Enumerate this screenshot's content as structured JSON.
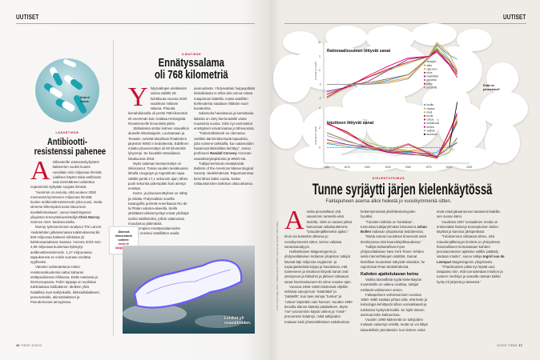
{
  "left_page": {
    "section": "UUTISET",
    "footer": {
      "page_number": "16",
      "magazine": "TIEDE",
      "issue": "3/2022"
    },
    "article_antibiotics": {
      "image_caption": "Aina ei tehoa.",
      "kicker": "LÄÄKETIEDE",
      "title_lines": [
        "Antibiootti-",
        "resistenssi pahenee"
      ],
      "drop_cap": "A",
      "paragraphs": [
        [
          {
            "t": "ntibiooteille vastustuskykyisten bakteerien vuoksi kuolee vuosittain viisi miljoonaa ihmistä. Liiallisen käytön takia antibiootit ovat menettäneet odotettua nopeammin kykyään suojata ihmisiä."
          }
        ],
        [
          {
            "t": "”Aiemmin on arvioitu, että vuoteen 2050 mennessä kymmenen miljoonaa ihmistä kuolee antibioottiresistenssiin joka vuosi, mutta olemme lähempänä tuota lukua kuin kuvittelimmekaan”, sanoo Washingtonin yliopiston terveystaloustieteilijä "
          },
          {
            "t": "Chris Murray",
            "b": true
          },
          {
            "t": " Science Alert -tiedesivustolla."
          }
        ],
        [
          {
            "t": "Murray työtovereineen analysoi The Lancet -tiedelehden julkaisemassa tutkimuksessa liki 500 miljoonaa bakteeri-infektiota yli kahdessasadassa maassa. Vuonna 2019 noin 4,95 miljoonaa kuolemaa kytkeytyi antibioottiresistenssiin. 1,27 miljoonassa tapauksessa se voitiin suoraan osoittaa syylliseksi."
          }
        ],
        [
          {
            "t": "Väestön suhteutettuna eniten resistenssikuolemia sattui Saharan eteläpuolisessa Afrikassa, Etelä-Aasiassa ja Itä-Euroopassa. Pahin tappaja on suolistoa tulehduttava kolibakteeri. Melkein yhtä haitallisia ovat stafylokokki, klebsiellabakteeri, pneumokokki, akinetobakteeri ja Pseudomonas aeruginosa."
          }
        ]
      ]
    },
    "article_lightning": {
      "kicker": "ILMATIEDE",
      "title_lines": [
        "Ennätyssalama",
        "oli 768 kilometriä"
      ],
      "drop_cap": "Y",
      "paragraphs": [
        [
          {
            "t": "hdysvaltojen eteläisissä osissa välähti 29. huhtikuuta vuonna 2020 maailman mittavin salama. Pituutta leimahduksella oli peräti 768 kilometriä eli enemmän kuin matkaa Helsingistä Rovaniemelle linnuntietä pitkin."
          }
        ],
        [
          {
            "t": "Jättisalama ulottui kolmen osavaltion alueelle Mississippiin, Louisianaan ja Texasiin, selviää Maailman ilmatieteen järjestön WMO:n tiedotteesta. Edellinen mitattu pituusennätys oli 60 kilometriä lyhyempi. Se havaittiin Brasiliassa lokakuussa 2018."
          }
        ],
        [
          {
            "t": "Myös salaman kestoennätys on rikkoutunut. Toissa vuoden kesäkuussa lähellä Uruguayn ja Argentiinan rajaa välähti peräti 17,1 sekunnin ajan, lähes puoli sekuntia pidempään kuin aiempi ennätys."
          }
        ],
        [
          {
            "t": "Kesto- ja pituusennätykset on nähty ja mitattu Yhdysvaltain suurilla tasangoilla ja Etelä-Amerikassa Rio de la Platan valuma-alueella. Siellä yksittäiset ukkosmyrskyt voivat yhdistyä isoiksi säällmiöiksi, jolloin salamoista muodostuu jättimäisiä."
          }
        ],
        [
          {
            "t": "Molempien ennätyssalamoiden mittaus onnistui satelliittien avulla avaruudesta. Yhdysvaltain huippupitkää leiskahdusta ei ehkä olisi voinut mitata maapinnan laitteilla, mutta satelliitin korkeudesta saadaan riittävän suuri kuvakulma."
          }
        ],
        [
          {
            "t": "Salamoita havaitsevia ja kartoittavia laitteita on viety kiertoradalle vasta muutamia vuosia. Siksi nyt varmistetut ennätykset voivat kaatua jo lähivuosina."
          }
        ],
        [
          {
            "t": "”Todennäköisesti on olemassa vieläkin äärimmäisempiä tapauksia, joita voimme tarkkailla, kun salamoiden havainnointitekniikka kehittyy”, sanoo professori "
          },
          {
            "t": "Randall Cerveny",
            "b": true
          },
          {
            "t": " Arizonan osavaltionyliopistosta ja WMO:sta."
          }
        ],
        [
          {
            "t": "Tutkijat kertoivat ennätyksistä Bulletin of the American Meteorological Society -tiedelehdessä. Raportoinnissa kesti lähes kaksi vuotta, koska mittaustulosten tarkistus ottaa aikansa."
          }
        ]
      ],
      "vote_box": {
        "line1": "Äänestä kiinnostavin uutinen:",
        "link": "tiede.fi/ lukijakilpailu"
      },
      "image_caption": "Leiskot yli osavaltioiden."
    }
  },
  "right_page": {
    "section": "UUTISET",
    "footer": {
      "issue": "3/2022",
      "magazine": "TIEDE",
      "page_number": "17"
    },
    "bubble_question": "Entä ne perustelut?",
    "credit": "Kuvat: Getty Images, NOAA. Grafiikka: Marten Scheffer, Ingrid van de Leemput, Johan Bollen",
    "article_language": {
      "kicker": "KIELENTUTKIMUS",
      "title": "Tunne syrjäytti järjen kielenkäytössä",
      "subtitle": "Faktapuheen asema alkoi heiketä jo vuosikymmeniä sitten.",
      "drop_cap": "A",
      "paragraphs": [
        [
          {
            "t": "sioita perustellaan yhä useammin tunteella eikä tiedolla, mikä on saanut jotkut kutsumaan aikakauttamme ”totuudenjälkeiseksi ajaksi.” Ilmiö sai kuitenkin alkunsa jo vuosikymmeniä sitten, kertoo valtaisa sanastoanalyysi."
          }
        ],
        [
          {
            "t": "Hollantilaisen Wageningenin ja yhdysvaltalaisen Indianan yliopiston tutkijat kävivät läpi miljoonia englannin- ja espanjankielisiä kirjoja ja havaitsivat, että tunteeseen ja intuitioon liittyvät sanat ovat yleistyneet ja faktoihin ja järkeen viittaavat sanat harvinaistuneet 40 viime vuoden ajan."
          }
        ],
        [
          {
            "t": "Vuosina 1850–1980 teksteissä viljeltiin sellaisia sanoja kuin ”määrittää” ja ”päätellä”, kun taas sanoja ”tuntea” ja ”uskoa” käytettiin vain harvoin. Vuoden 1980 tienoilla tilanne kääntyi päälaelleen. Myös ”me”-pronominin käyttö väheni ja ”minä”-pronominin lisääntyi, mikä tutkijoiden mukaan kielii yhteisölähtöisen näkökulman heikentymisestä yksilökeskeisyyden hyväksi."
          }
        ],
        [
          {
            "t": "”Tulosten tulkinta on hankalaa”, tunnustaa tutkijaryhmään lukeutunut "
          },
          {
            "t": "Johan Bollen",
            "b": true
          },
          {
            "t": " Indianan yliopistosta tiedotteessa."
          }
        ],
        [
          {
            "t": "”Mutta samat muutokset ilmenevät sekä tietokirjoissa että kaunokirjallisuudessa.”"
          }
        ],
        [
          {
            "t": "Tutkijat tarkastelivat myös yhdysvaltalaisen New York Times -lehden sekä internethakujen sisältöä. Samat kielelliset muutokset näkyivät niissäkin, he raportoivat Pnas-tiedelehdessä."
          }
        ],
        {
          "subhead": "Kahden ajattelutavan keinu"
        },
        [
          {
            "t": "Vaikka täsmällistä syytä kielenkäytön muutoksille on vaikea osoittaa, tutkijat esittävät valistuneen arvion."
          }
        ],
        [
          {
            "t": "Faktapuheen vahvistuminen vuosina 1850–1980 saattaa johtua siitä, että tiede ja teknologia kehittyivät silloin voimakkaasti ja tuloksista hyötyivät kaikki. Se lujitti tieteen asemaa koko kulttuurissa."
          }
        ],
        [
          {
            "t": "Vuoden 1980 käännettä on tutkijoiden mukaan vaisempi eritellä, mutta se voi liittyä taloudellisiin jännitteisiin: kun tieteen voitot eivät enää jakaantuneet tasaisesti kaikille, sen suosio kärsi."
          }
        ],
        [
          {
            "t": "Vuodesta 2007 sosiaalinen media on entisestään lisännyt tunnepitoisen kielen käyttöä ja karsinut järkiperäistä."
          }
        ],
        [
          {
            "t": "”Tuloksemme viittaavat siihen, että totuudenjälkeisyys ilmiönä on yhteydessä historialliseen keinulautaan kahden perusluonteisen ajattelun välillä: päättely vastaan intuitio”, sanoo tutkija "
          },
          {
            "t": "Ingrid van de Leemput",
            "b": true
          },
          {
            "t": " Wageningenin yliopistosta."
          }
        ],
        [
          {
            "t": "”Yhteiskuntien pitää nyt löytää uusi tasapaino niin, että tunnustetaan intuition ja tunteen merkitys ja samalla otetaan kaikki hyöty irti järjestä ja tieteestä.”"
          }
        ]
      ]
    }
  },
  "chart_data": [
    {
      "type": "line",
      "title": "Rationaalisuuteen liittyvät sanat",
      "ylabel": "suhteellinen käyttö",
      "xlim": [
        1850,
        2025
      ],
      "ylim": [
        -2,
        2
      ],
      "yticks": [
        2,
        1,
        0,
        -1,
        -2
      ],
      "grid": false,
      "legend_position": "right",
      "x": [
        1850,
        1875,
        1900,
        1925,
        1950,
        1975,
        1985,
        2000,
        2010
      ],
      "series": [
        {
          "name": "analyysi",
          "color": "#2aa7df",
          "values": [
            -1,
            -1,
            -1,
            -0.7,
            -0.3,
            0.9,
            1.8,
            1.1,
            0.8
          ]
        },
        {
          "name": "data",
          "color": "#f39c12",
          "values": [
            -1,
            -1,
            -1,
            -0.8,
            -0.5,
            1,
            2,
            1.2,
            0
          ]
        },
        {
          "name": "raja-arvo",
          "color": "#8cc63f",
          "values": [
            -2,
            -1.2,
            -0.5,
            0,
            0.5,
            1,
            1.6,
            0.7,
            -0.1
          ]
        },
        {
          "name": "tulos",
          "color": "#e2001a",
          "values": [
            -1.9,
            -1.1,
            -0.5,
            0.1,
            0.6,
            1,
            1.5,
            0.4,
            -0.5
          ]
        },
        {
          "name": "määritellä",
          "color": "#7b2a8b",
          "values": [
            -1.5,
            -1.2,
            -0.8,
            0,
            0.8,
            1,
            1.4,
            0.5,
            -0.1
          ]
        },
        {
          "name": "prosessi",
          "color": "#a0673c",
          "values": [
            -1,
            -1,
            -0.9,
            -0.6,
            -0.3,
            0.9,
            1.4,
            0.7,
            -0.2
          ]
        },
        {
          "name": "koko",
          "color": "#e5007e",
          "values": [
            -1.7,
            -1.2,
            -0.4,
            0.3,
            0.9,
            1,
            1.3,
            0.4,
            -0.3
          ]
        },
        {
          "name": "prosentti",
          "color": "#999999",
          "values": [
            -1,
            -1,
            -1,
            -0.9,
            -0.6,
            0.9,
            1.9,
            0.8,
            -0.1
          ]
        }
      ]
    },
    {
      "type": "line",
      "title": "Intuitioon liittyvät sanat",
      "ylabel": "suhteellinen käyttö",
      "xlim": [
        1850,
        2025
      ],
      "ylim": [
        -1.5,
        4
      ],
      "yticks": [
        4,
        2,
        0
      ],
      "xticks": [
        1850,
        1875,
        1900,
        1925,
        1950,
        1975,
        2000,
        2025
      ],
      "baseline": 0,
      "grid": false,
      "legend_position": "right",
      "x": [
        1850,
        1875,
        1900,
        1925,
        1950,
        1975,
        1985,
        2000,
        2010
      ],
      "series": [
        {
          "name": "kuulla",
          "color": "#2aa7df",
          "values": [
            0.4,
            0.1,
            -0.2,
            -0.3,
            -0.5,
            -0.6,
            -0.5,
            0.8,
            2.5
          ]
        },
        {
          "name": "viisaus",
          "color": "#f39c12",
          "values": [
            0.5,
            0.3,
            0,
            -0.2,
            -0.3,
            -0.4,
            -1,
            0.8,
            3
          ]
        },
        {
          "name": "mieli",
          "color": "#8cc63f",
          "values": [
            2.5,
            1.5,
            0.5,
            0,
            -0.3,
            -0.9,
            -1,
            -0.5,
            1
          ]
        },
        {
          "name": "tuulla",
          "color": "#e2001a",
          "values": [
            2.4,
            1.6,
            0.2,
            -0.4,
            0.3,
            -0.6,
            -1,
            1,
            2.7
          ]
        },
        {
          "name": "uskoa",
          "color": "#7b2a8b",
          "values": [
            0.8,
            0.3,
            0,
            -0.5,
            -0.7,
            -0.8,
            -0.9,
            0,
            0.5
          ]
        },
        {
          "name": "todellisuus",
          "color": "#a0673c",
          "values": [
            1.5,
            0.7,
            0,
            -0.4,
            -0.6,
            -0.9,
            -1.1,
            1.5,
            3.3
          ]
        },
        {
          "name": "tuntea",
          "color": "#e5007e",
          "values": [
            2.5,
            1.4,
            0.3,
            -0.5,
            -0.4,
            -0.7,
            -1,
            1.6,
            3.5
          ]
        },
        {
          "name": "valitsta",
          "color": "#999999",
          "values": [
            1.2,
            0.6,
            0.1,
            -0.2,
            0.4,
            -0.5,
            -0.8,
            0,
            1
          ]
        },
        {
          "name": "facebook",
          "color": "#111111",
          "values": [
            null,
            null,
            null,
            null,
            null,
            null,
            null,
            0,
            4.6
          ]
        }
      ]
    }
  ]
}
